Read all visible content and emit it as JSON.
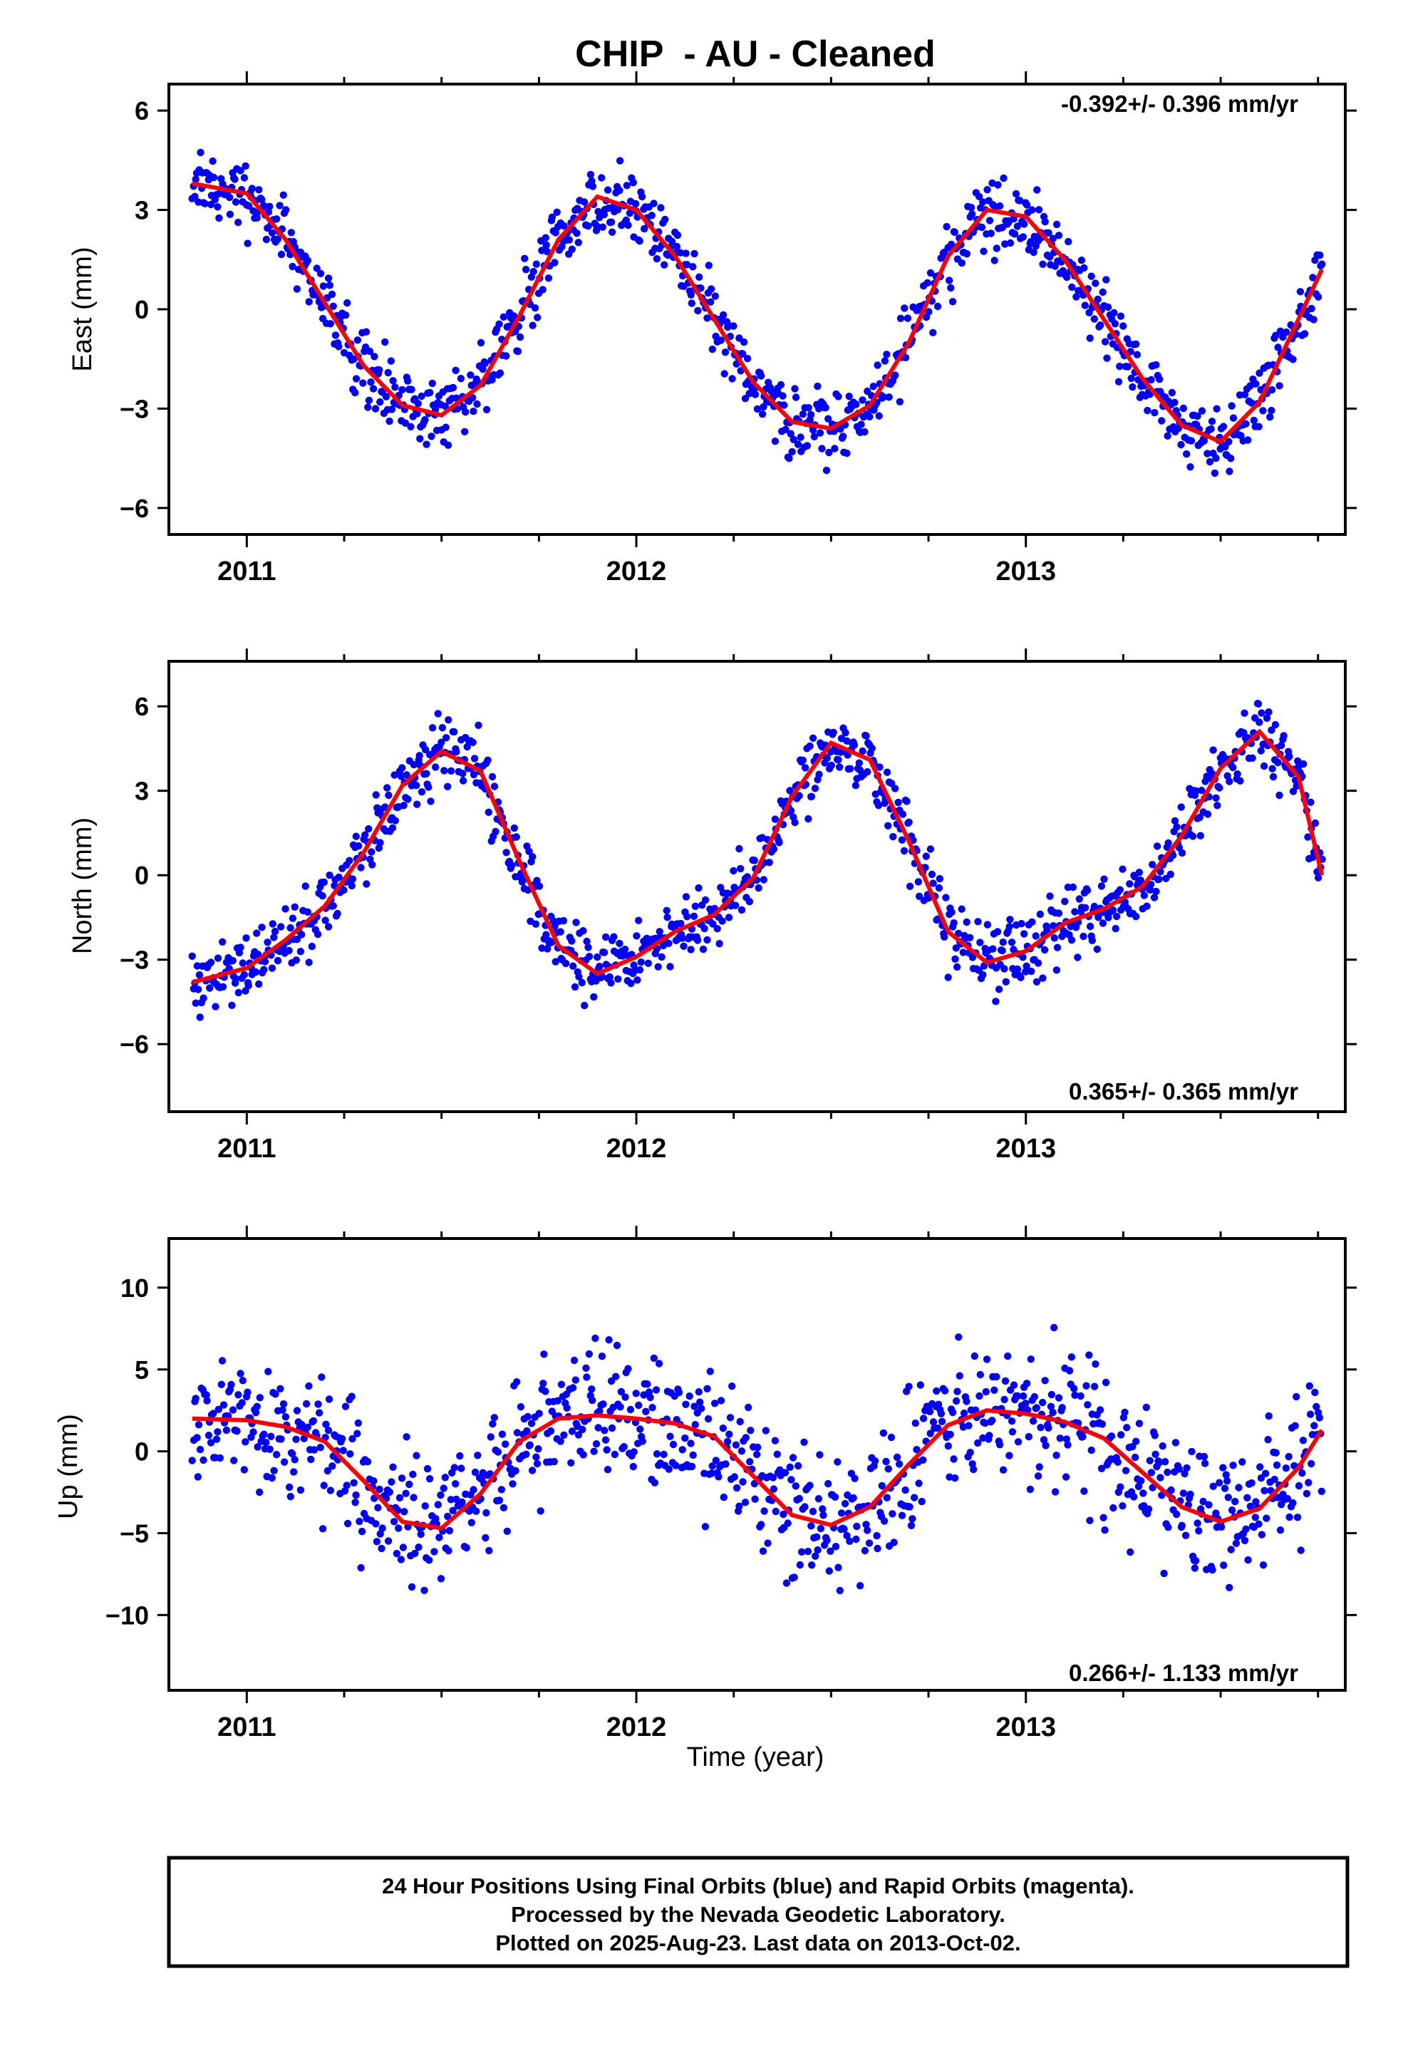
{
  "title": "CHIP  - AU - Cleaned",
  "xlabel": "Time (year)",
  "footer": {
    "line1": "24 Hour Positions Using Final Orbits (blue) and Rapid Orbits (magenta).",
    "line2": "Processed by the Nevada Geodetic Laboratory.",
    "line3": "Plotted on 2025-Aug-23. Last data on 2013-Oct-02."
  },
  "colors": {
    "points": "#0000ff",
    "fit": "#ff0000",
    "axes": "#000000"
  },
  "chart_data": [
    {
      "type": "scatter",
      "component": "east",
      "ylabel": "East (mm)",
      "rate": "-0.392+/- 0.396 mm/yr",
      "rate_position": "top-right",
      "xlim": [
        2010.8,
        2013.82
      ],
      "ylim": [
        -6.8,
        6.8
      ],
      "xticks": [
        2011,
        2012,
        2013
      ],
      "yticks": [
        -6,
        -3,
        0,
        3,
        6
      ],
      "ytick_labels": [
        "−6",
        "−3",
        "0",
        "3",
        "6"
      ],
      "data_start": 2010.86,
      "data_end": 2013.76,
      "fit": {
        "x": [
          2010.86,
          2011.0,
          2011.1,
          2011.2,
          2011.3,
          2011.4,
          2011.5,
          2011.6,
          2011.7,
          2011.8,
          2011.9,
          2012.0,
          2012.1,
          2012.2,
          2012.3,
          2012.4,
          2012.5,
          2012.6,
          2012.7,
          2012.8,
          2012.9,
          2013.0,
          2013.1,
          2013.2,
          2013.3,
          2013.4,
          2013.5,
          2013.6,
          2013.7,
          2013.76
        ],
        "y": [
          3.8,
          3.5,
          2.1,
          0.2,
          -1.7,
          -2.9,
          -3.2,
          -2.3,
          -0.2,
          2.1,
          3.4,
          3.0,
          1.6,
          -0.3,
          -2.2,
          -3.4,
          -3.6,
          -2.9,
          -1.0,
          1.6,
          3.0,
          2.8,
          1.5,
          -0.3,
          -2.1,
          -3.5,
          -4.0,
          -2.8,
          -0.3,
          1.2
        ]
      }
    },
    {
      "type": "scatter",
      "component": "north",
      "ylabel": "North (mm)",
      "rate": "0.365+/- 0.365 mm/yr",
      "rate_position": "bottom-right",
      "xlim": [
        2010.8,
        2013.82
      ],
      "ylim": [
        -8.4,
        7.6
      ],
      "xticks": [
        2011,
        2012,
        2013
      ],
      "yticks": [
        -6,
        -3,
        0,
        3,
        6
      ],
      "ytick_labels": [
        "−6",
        "−3",
        "0",
        "3",
        "6"
      ],
      "data_start": 2010.86,
      "data_end": 2013.76,
      "fit": {
        "x": [
          2010.86,
          2011.0,
          2011.1,
          2011.2,
          2011.3,
          2011.4,
          2011.5,
          2011.6,
          2011.7,
          2011.8,
          2011.9,
          2012.0,
          2012.1,
          2012.2,
          2012.3,
          2012.4,
          2012.5,
          2012.6,
          2012.7,
          2012.8,
          2012.9,
          2013.0,
          2013.1,
          2013.2,
          2013.3,
          2013.4,
          2013.5,
          2013.6,
          2013.7,
          2013.76
        ],
        "y": [
          -3.8,
          -3.3,
          -2.3,
          -1.1,
          0.8,
          3.2,
          4.4,
          3.7,
          0.5,
          -2.5,
          -3.5,
          -2.9,
          -2.0,
          -1.4,
          -0.1,
          2.8,
          4.7,
          4.1,
          1.2,
          -2.0,
          -3.1,
          -2.7,
          -1.7,
          -1.2,
          -0.4,
          1.4,
          3.8,
          5.1,
          3.5,
          0.0
        ]
      }
    },
    {
      "type": "scatter",
      "component": "up",
      "ylabel": "Up (mm)",
      "rate": "0.266+/- 1.133 mm/yr",
      "rate_position": "bottom-right",
      "xlim": [
        2010.8,
        2013.82
      ],
      "ylim": [
        -14.6,
        13.0
      ],
      "xticks": [
        2011,
        2012,
        2013
      ],
      "yticks": [
        -10,
        -5,
        0,
        5,
        10
      ],
      "ytick_labels": [
        "−10",
        "−5",
        "0",
        "5",
        "10"
      ],
      "data_start": 2010.86,
      "data_end": 2013.76,
      "fit": {
        "x": [
          2010.86,
          2011.0,
          2011.1,
          2011.2,
          2011.3,
          2011.4,
          2011.5,
          2011.6,
          2011.7,
          2011.8,
          2011.9,
          2012.0,
          2012.1,
          2012.2,
          2012.3,
          2012.4,
          2012.5,
          2012.6,
          2012.7,
          2012.8,
          2012.9,
          2013.0,
          2013.1,
          2013.2,
          2013.3,
          2013.4,
          2013.5,
          2013.6,
          2013.7,
          2013.76
        ],
        "y": [
          2.0,
          1.9,
          1.5,
          0.6,
          -1.8,
          -4.3,
          -4.7,
          -2.6,
          0.6,
          2.0,
          2.2,
          2.0,
          1.7,
          0.9,
          -1.5,
          -3.9,
          -4.5,
          -3.4,
          -0.8,
          1.6,
          2.5,
          2.3,
          1.8,
          0.8,
          -1.3,
          -3.4,
          -4.3,
          -3.5,
          -1.0,
          1.3
        ]
      }
    }
  ]
}
